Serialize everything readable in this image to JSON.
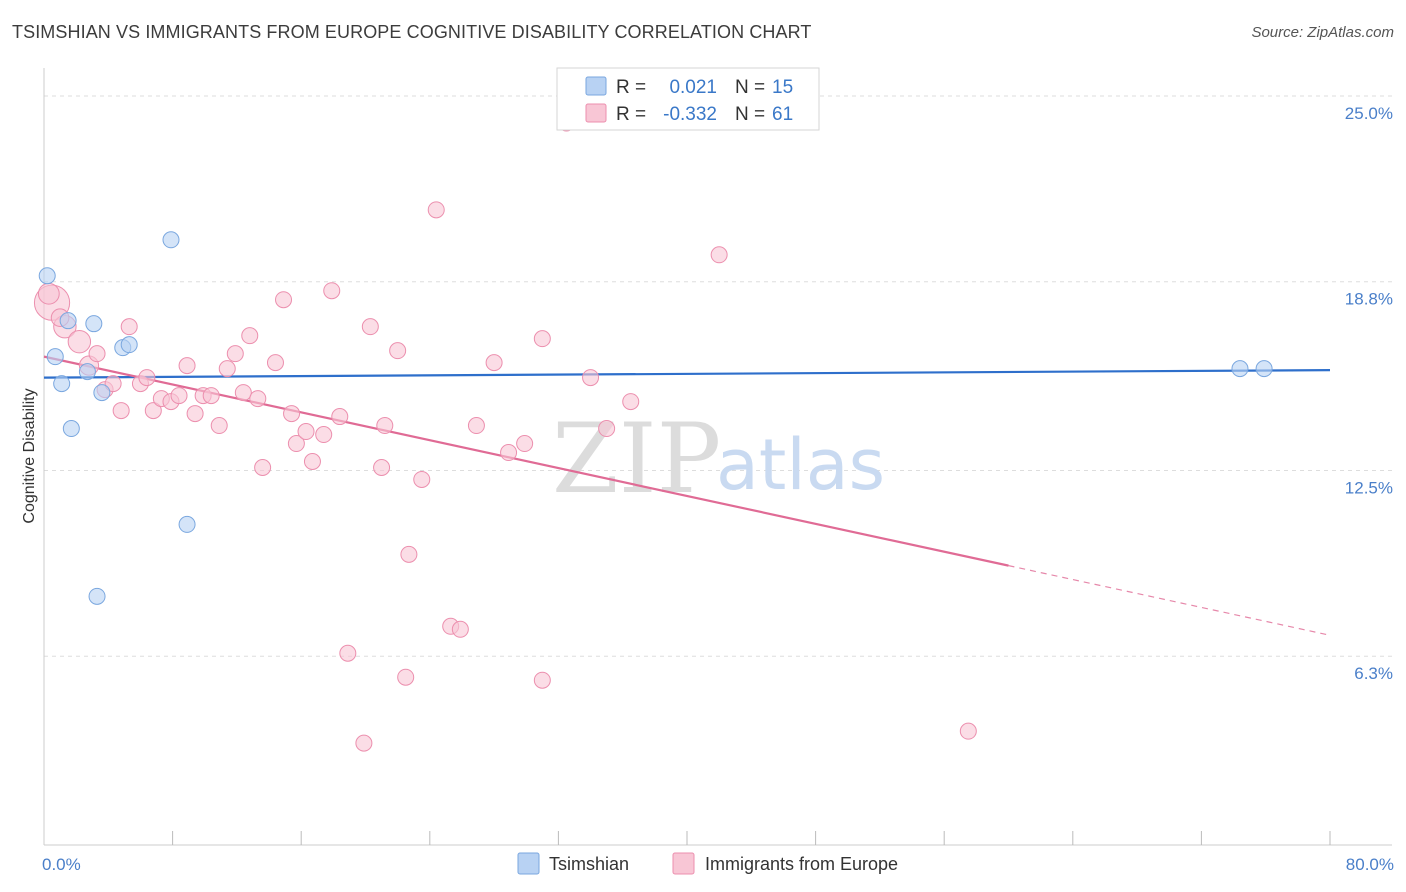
{
  "title": "TSIMSHIAN VS IMMIGRANTS FROM EUROPE COGNITIVE DISABILITY CORRELATION CHART",
  "source": "Source: ZipAtlas.com",
  "watermark": {
    "zip": "ZIP",
    "atlas": "atlas"
  },
  "colors": {
    "blue_fill": "#b8d2f3",
    "blue_stroke": "#7aa7df",
    "blue_line": "#2e6fcb",
    "pink_fill": "#f8c6d5",
    "pink_stroke": "#ec8fae",
    "pink_line": "#e06b95",
    "grid": "#dddddd",
    "axis_text": "#4a7fc9"
  },
  "legend": {
    "rows": [
      {
        "r_label": "R =",
        "r_value": "0.021",
        "n_label": "N =",
        "n_value": "15",
        "color": "blue"
      },
      {
        "r_label": "R =",
        "r_value": "-0.332",
        "n_label": "N =",
        "n_value": "61",
        "color": "pink"
      }
    ]
  },
  "bottom_legend": [
    {
      "label": "Tsimshian",
      "color": "blue"
    },
    {
      "label": "Immigrants from Europe",
      "color": "pink"
    }
  ],
  "chart_data": {
    "type": "scatter",
    "title": "TSIMSHIAN VS IMMIGRANTS FROM EUROPE COGNITIVE DISABILITY CORRELATION CHART",
    "xlabel": "",
    "ylabel": "Cognitive Disability",
    "xlim": [
      0,
      80
    ],
    "ylim": [
      0,
      25.6
    ],
    "x_tick_labels": [
      {
        "value": 0,
        "label": "0.0%"
      },
      {
        "value": 80,
        "label": "80.0%"
      }
    ],
    "x_minor_ticks": [
      8,
      16,
      24,
      32,
      40,
      48,
      56,
      64,
      72,
      80
    ],
    "y_ticks": [
      {
        "value": 6.3,
        "label": "6.3%"
      },
      {
        "value": 12.5,
        "label": "12.5%"
      },
      {
        "value": 18.8,
        "label": "18.8%"
      },
      {
        "value": 25.0,
        "label": "25.0%"
      }
    ],
    "grid": true,
    "series": [
      {
        "name": "Tsimshian",
        "color": "blue",
        "R": 0.021,
        "N": 15,
        "trend": {
          "x_start": 0,
          "y_start": 15.6,
          "x_end": 80,
          "y_end": 15.85,
          "solid_until": 80
        },
        "points": [
          {
            "x": 0.2,
            "y": 19.0,
            "s": 1
          },
          {
            "x": 0.7,
            "y": 16.3,
            "s": 1
          },
          {
            "x": 1.1,
            "y": 15.4,
            "s": 1
          },
          {
            "x": 1.5,
            "y": 17.5,
            "s": 1
          },
          {
            "x": 1.7,
            "y": 13.9,
            "s": 1
          },
          {
            "x": 2.7,
            "y": 15.8,
            "s": 1
          },
          {
            "x": 3.1,
            "y": 17.4,
            "s": 1
          },
          {
            "x": 3.3,
            "y": 8.3,
            "s": 1
          },
          {
            "x": 3.6,
            "y": 15.1,
            "s": 1
          },
          {
            "x": 4.9,
            "y": 16.6,
            "s": 1
          },
          {
            "x": 5.3,
            "y": 16.7,
            "s": 1
          },
          {
            "x": 7.9,
            "y": 20.2,
            "s": 1
          },
          {
            "x": 8.9,
            "y": 10.7,
            "s": 1
          },
          {
            "x": 74.4,
            "y": 15.9,
            "s": 1
          },
          {
            "x": 75.9,
            "y": 15.9,
            "s": 1
          }
        ]
      },
      {
        "name": "Immigrants from Europe",
        "color": "pink",
        "R": -0.332,
        "N": 61,
        "trend": {
          "x_start": 0,
          "y_start": 16.3,
          "x_end": 80,
          "y_end": 7.0,
          "solid_until": 60
        },
        "points": [
          {
            "x": 0.5,
            "y": 18.1,
            "s": 2.2
          },
          {
            "x": 1.3,
            "y": 17.3,
            "s": 1.4
          },
          {
            "x": 2.2,
            "y": 16.8,
            "s": 1.4
          },
          {
            "x": 2.8,
            "y": 16.0,
            "s": 1.2
          },
          {
            "x": 3.3,
            "y": 16.4,
            "s": 1
          },
          {
            "x": 3.8,
            "y": 15.2,
            "s": 1
          },
          {
            "x": 4.3,
            "y": 15.4,
            "s": 1
          },
          {
            "x": 4.8,
            "y": 14.5,
            "s": 1
          },
          {
            "x": 5.3,
            "y": 17.3,
            "s": 1
          },
          {
            "x": 6.0,
            "y": 15.4,
            "s": 1
          },
          {
            "x": 6.4,
            "y": 15.6,
            "s": 1
          },
          {
            "x": 6.8,
            "y": 14.5,
            "s": 1
          },
          {
            "x": 7.3,
            "y": 14.9,
            "s": 1
          },
          {
            "x": 7.9,
            "y": 14.8,
            "s": 1
          },
          {
            "x": 8.4,
            "y": 15.0,
            "s": 1
          },
          {
            "x": 8.9,
            "y": 16.0,
            "s": 1
          },
          {
            "x": 9.4,
            "y": 14.4,
            "s": 1
          },
          {
            "x": 9.9,
            "y": 15.0,
            "s": 1
          },
          {
            "x": 10.4,
            "y": 15.0,
            "s": 1
          },
          {
            "x": 10.9,
            "y": 14.0,
            "s": 1
          },
          {
            "x": 11.4,
            "y": 15.9,
            "s": 1
          },
          {
            "x": 11.9,
            "y": 16.4,
            "s": 1
          },
          {
            "x": 12.4,
            "y": 15.1,
            "s": 1
          },
          {
            "x": 12.8,
            "y": 17.0,
            "s": 1
          },
          {
            "x": 13.3,
            "y": 14.9,
            "s": 1
          },
          {
            "x": 13.6,
            "y": 12.6,
            "s": 1
          },
          {
            "x": 14.4,
            "y": 16.1,
            "s": 1
          },
          {
            "x": 14.9,
            "y": 18.2,
            "s": 1
          },
          {
            "x": 15.4,
            "y": 14.4,
            "s": 1
          },
          {
            "x": 15.7,
            "y": 13.4,
            "s": 1
          },
          {
            "x": 16.3,
            "y": 13.8,
            "s": 1
          },
          {
            "x": 16.7,
            "y": 12.8,
            "s": 1
          },
          {
            "x": 17.4,
            "y": 13.7,
            "s": 1
          },
          {
            "x": 17.9,
            "y": 18.5,
            "s": 1
          },
          {
            "x": 18.4,
            "y": 14.3,
            "s": 1
          },
          {
            "x": 18.9,
            "y": 6.4,
            "s": 1
          },
          {
            "x": 19.9,
            "y": 3.4,
            "s": 1
          },
          {
            "x": 20.3,
            "y": 17.3,
            "s": 1
          },
          {
            "x": 21.0,
            "y": 12.6,
            "s": 1
          },
          {
            "x": 21.2,
            "y": 14.0,
            "s": 1
          },
          {
            "x": 22.0,
            "y": 16.5,
            "s": 1
          },
          {
            "x": 22.5,
            "y": 5.6,
            "s": 1
          },
          {
            "x": 22.7,
            "y": 9.7,
            "s": 1
          },
          {
            "x": 23.5,
            "y": 12.2,
            "s": 1
          },
          {
            "x": 24.4,
            "y": 21.2,
            "s": 1
          },
          {
            "x": 25.3,
            "y": 7.3,
            "s": 1
          },
          {
            "x": 25.9,
            "y": 7.2,
            "s": 1
          },
          {
            "x": 26.9,
            "y": 14.0,
            "s": 1
          },
          {
            "x": 28.0,
            "y": 16.1,
            "s": 1
          },
          {
            "x": 28.9,
            "y": 13.1,
            "s": 1
          },
          {
            "x": 29.9,
            "y": 13.4,
            "s": 1
          },
          {
            "x": 31.0,
            "y": 16.9,
            "s": 1
          },
          {
            "x": 31.0,
            "y": 5.5,
            "s": 1
          },
          {
            "x": 32.5,
            "y": 24.1,
            "s": 1
          },
          {
            "x": 34.0,
            "y": 15.6,
            "s": 1
          },
          {
            "x": 35.0,
            "y": 13.9,
            "s": 1
          },
          {
            "x": 36.5,
            "y": 14.8,
            "s": 1
          },
          {
            "x": 42.0,
            "y": 19.7,
            "s": 1
          },
          {
            "x": 57.5,
            "y": 3.8,
            "s": 1
          },
          {
            "x": 0.3,
            "y": 18.4,
            "s": 1.3
          },
          {
            "x": 1.0,
            "y": 17.6,
            "s": 1.1
          }
        ]
      }
    ]
  }
}
